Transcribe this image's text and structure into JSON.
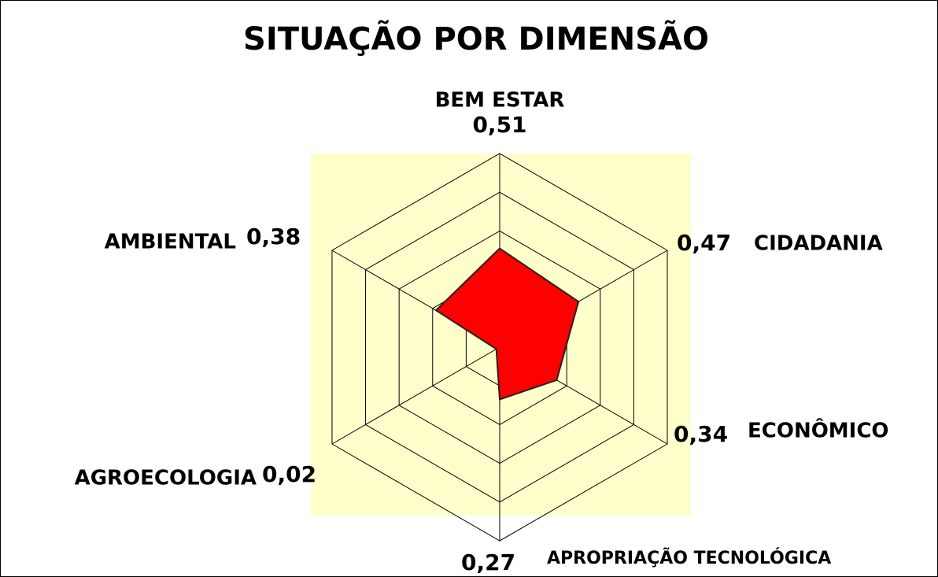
{
  "chart_data": {
    "type": "radar",
    "title": "SITUAÇÃO POR DIMENSÃO",
    "categories": [
      "BEM ESTAR",
      "CIDADANIA",
      "ECONÔMICO",
      "APROPRIAÇÃO TECNOLÓGICA",
      "AGROECOLOGIA",
      "AMBIENTAL"
    ],
    "values": [
      0.51,
      0.47,
      0.34,
      0.27,
      0.02,
      0.38
    ],
    "value_labels": [
      "0,51",
      "0,47",
      "0,34",
      "0,27",
      "0,02",
      "0,38"
    ],
    "color": "#ff0000",
    "rlim": [
      0,
      1
    ],
    "rticks": [
      0.2,
      0.4,
      0.6,
      0.8,
      1
    ]
  }
}
